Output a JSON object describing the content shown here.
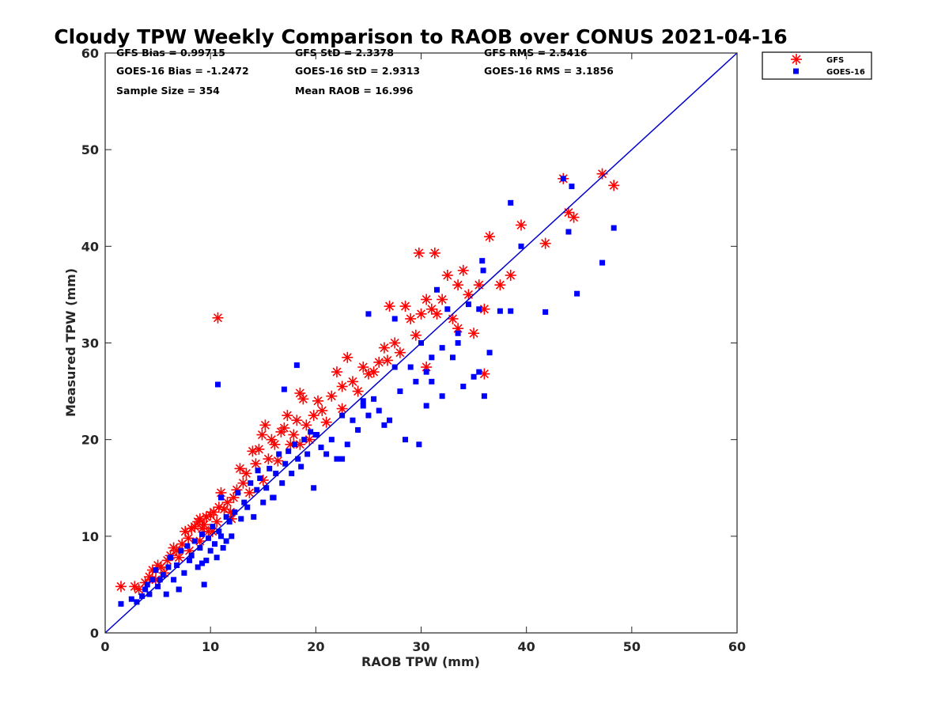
{
  "chart_data": {
    "type": "scatter",
    "title": "Cloudy TPW Weekly Comparison to RAOB over CONUS 2021-04-16",
    "xlabel": "RAOB TPW (mm)",
    "ylabel": "Measured TPW (mm)",
    "xlim": [
      0,
      60
    ],
    "ylim": [
      0,
      60
    ],
    "xticks": [
      "0",
      "10",
      "20",
      "30",
      "40",
      "50",
      "60"
    ],
    "yticks": [
      "0",
      "10",
      "20",
      "30",
      "40",
      "50",
      "60"
    ],
    "grid": false,
    "legend_placement": "outside-top-right",
    "reference_line": {
      "x": [
        0,
        60
      ],
      "y": [
        0,
        60
      ],
      "color": "#0000cc"
    },
    "stats": {
      "gfs_bias": "GFS Bias = 0.99715",
      "gfs_std": "GFS StD = 2.3378",
      "gfs_rms": "GFS RMS = 2.5416",
      "goes_bias": "GOES-16 Bias = -1.2472",
      "goes_std": "GOES-16 StD = 2.9313",
      "goes_rms": "GOES-16 RMS = 3.1856",
      "sample_size": "Sample Size = 354",
      "mean_raob": "Mean RAOB = 16.996"
    },
    "series": [
      {
        "name": "GFS",
        "marker": "asterisk",
        "color": "#ff0000",
        "x": [
          1.5,
          2.8,
          3.2,
          3.8,
          4.2,
          4.5,
          4.8,
          5.0,
          5.3,
          5.6,
          5.9,
          6.2,
          6.5,
          6.8,
          7.0,
          7.3,
          7.6,
          7.9,
          8.2,
          8.5,
          8.8,
          9.0,
          9.2,
          9.4,
          9.6,
          9.8,
          10.0,
          10.3,
          10.6,
          10.8,
          11.0,
          11.3,
          11.6,
          11.9,
          12.2,
          12.5,
          12.8,
          13.1,
          13.4,
          13.7,
          14.0,
          14.3,
          14.6,
          14.9,
          15.2,
          15.5,
          15.8,
          16.1,
          16.4,
          16.7,
          17.0,
          17.3,
          17.6,
          17.9,
          18.2,
          18.5,
          18.8,
          19.1,
          19.4,
          19.8,
          20.2,
          20.6,
          21.0,
          21.5,
          22.0,
          22.5,
          23.0,
          23.5,
          24.0,
          24.5,
          25.0,
          25.5,
          26.0,
          26.5,
          27.0,
          27.5,
          28.0,
          28.5,
          29.0,
          29.5,
          30.0,
          30.5,
          31.0,
          31.5,
          32.0,
          32.5,
          33.0,
          33.5,
          34.0,
          34.5,
          35.0,
          35.5,
          36.0,
          36.5,
          37.5,
          38.5,
          39.5,
          41.8,
          43.5,
          44.0,
          44.5,
          47.2,
          48.3,
          10.7,
          29.8,
          31.3,
          36.0,
          9.0,
          10.2,
          8.0,
          12.0,
          15.0,
          18.5,
          22.5,
          26.8,
          30.5,
          33.5
        ],
        "y": [
          4.8,
          4.8,
          4.5,
          5.2,
          5.8,
          6.5,
          5.5,
          7.0,
          6.8,
          6.2,
          7.5,
          8.0,
          8.8,
          8.5,
          7.8,
          9.2,
          10.5,
          9.8,
          10.8,
          11.0,
          11.5,
          11.8,
          10.8,
          11.2,
          12.0,
          10.5,
          12.2,
          12.5,
          11.5,
          13.0,
          14.5,
          12.8,
          13.5,
          12.5,
          14.0,
          14.8,
          17.0,
          15.5,
          16.5,
          14.5,
          18.8,
          17.5,
          19.0,
          20.5,
          21.5,
          18.0,
          20.0,
          19.5,
          17.8,
          20.8,
          21.2,
          22.5,
          19.5,
          20.5,
          22.0,
          24.8,
          24.2,
          21.5,
          20.0,
          22.5,
          24.0,
          23.0,
          21.8,
          24.5,
          27.0,
          25.5,
          28.5,
          26.0,
          25.0,
          27.5,
          26.8,
          27.0,
          28.0,
          29.5,
          33.8,
          30.0,
          29.0,
          33.8,
          32.5,
          30.8,
          33.0,
          34.5,
          33.5,
          33.0,
          34.5,
          37.0,
          32.5,
          36.0,
          37.5,
          35.0,
          31.0,
          36.0,
          33.5,
          41.0,
          36.0,
          37.0,
          42.2,
          40.3,
          47.0,
          43.5,
          43.0,
          47.5,
          46.3,
          32.6,
          39.3,
          39.3,
          26.8,
          9.5,
          10.5,
          8.5,
          11.8,
          15.8,
          19.5,
          23.2,
          28.2,
          27.5,
          31.5
        ]
      },
      {
        "name": "GOES-16",
        "marker": "square",
        "color": "#0000ff",
        "x": [
          1.5,
          2.5,
          3.0,
          3.5,
          3.8,
          4.0,
          4.2,
          4.5,
          4.8,
          5.0,
          5.2,
          5.5,
          5.8,
          6.0,
          6.2,
          6.5,
          6.8,
          7.0,
          7.2,
          7.5,
          7.8,
          8.0,
          8.2,
          8.5,
          8.8,
          9.0,
          9.2,
          9.4,
          9.6,
          9.8,
          10.0,
          10.2,
          10.4,
          10.6,
          10.8,
          11.0,
          11.2,
          11.5,
          11.8,
          12.0,
          12.3,
          12.6,
          12.9,
          13.2,
          13.5,
          13.8,
          14.1,
          14.4,
          14.7,
          15.0,
          15.3,
          15.6,
          15.9,
          16.2,
          16.5,
          16.8,
          17.1,
          17.4,
          17.7,
          18.0,
          18.3,
          18.6,
          18.9,
          19.2,
          19.5,
          19.8,
          20.1,
          20.5,
          21.0,
          21.5,
          22.0,
          22.5,
          23.0,
          23.5,
          24.0,
          24.5,
          25.0,
          25.5,
          26.0,
          26.5,
          27.0,
          27.5,
          28.0,
          28.5,
          29.0,
          29.5,
          30.0,
          30.5,
          31.0,
          31.5,
          32.0,
          32.5,
          33.0,
          33.5,
          34.0,
          34.5,
          35.0,
          35.5,
          36.0,
          36.5,
          37.5,
          38.5,
          39.5,
          41.8,
          43.5,
          44.0,
          44.3,
          44.8,
          47.2,
          48.3,
          38.5,
          10.7,
          18.2,
          9.2,
          11.5,
          7.0,
          14.5,
          17.0,
          20.0,
          25.0,
          29.8,
          32.0,
          35.8,
          35.9,
          35.5,
          30.5,
          27.5,
          33.5,
          31.0,
          16.0,
          11.0,
          22.5,
          24.5
        ],
        "y": [
          3.0,
          3.5,
          3.2,
          3.8,
          4.5,
          5.0,
          4.0,
          5.5,
          6.5,
          4.8,
          5.5,
          6.0,
          4.0,
          6.8,
          7.8,
          5.5,
          7.0,
          4.5,
          8.5,
          6.2,
          9.0,
          7.5,
          8.0,
          9.5,
          6.8,
          8.8,
          10.2,
          5.0,
          7.5,
          9.8,
          8.5,
          11.0,
          9.2,
          7.8,
          10.5,
          14.0,
          8.8,
          12.0,
          11.5,
          10.0,
          12.5,
          14.5,
          11.8,
          13.5,
          13.0,
          15.5,
          12.0,
          14.8,
          16.0,
          13.5,
          15.0,
          17.0,
          14.0,
          16.5,
          18.5,
          15.5,
          17.5,
          18.8,
          16.5,
          19.5,
          18.0,
          17.2,
          20.0,
          18.5,
          20.8,
          15.0,
          20.5,
          19.2,
          18.5,
          20.0,
          18.0,
          22.5,
          19.5,
          22.0,
          21.0,
          23.5,
          22.5,
          24.2,
          23.0,
          21.5,
          22.0,
          32.5,
          25.0,
          20.0,
          27.5,
          26.0,
          30.0,
          27.0,
          28.5,
          35.5,
          29.5,
          33.5,
          28.5,
          30.0,
          25.5,
          34.0,
          26.5,
          27.0,
          24.5,
          29.0,
          33.3,
          33.3,
          40.0,
          33.2,
          47.0,
          41.5,
          46.2,
          35.1,
          38.3,
          41.9,
          44.5,
          25.7,
          27.7,
          7.2,
          9.5,
          4.5,
          16.8,
          25.2,
          20.5,
          33.0,
          19.5,
          24.5,
          38.5,
          37.5,
          33.5,
          23.5,
          27.5,
          31.0,
          26.0,
          14.0,
          10.0,
          18.0,
          24.0
        ]
      }
    ]
  }
}
